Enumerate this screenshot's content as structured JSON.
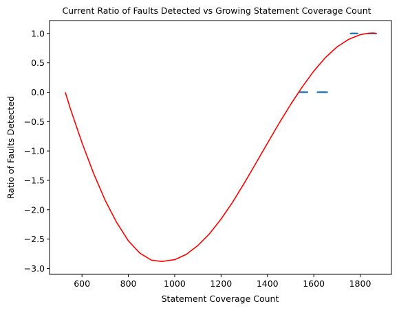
{
  "chart_data": {
    "type": "scatter",
    "title": "Current Ratio of Faults Detected vs Growing Statement Coverage Count",
    "xlabel": "Statement Coverage Count",
    "ylabel": "Ratio of Faults Detected",
    "xlim": [
      460,
      1935
    ],
    "ylim": [
      -3.1,
      1.22
    ],
    "xticks": [
      600,
      800,
      1000,
      1200,
      1400,
      1600,
      1800
    ],
    "yticks": [
      1.0,
      0.5,
      0.0,
      -0.5,
      -1.0,
      -1.5,
      -2.0,
      -2.5,
      -3.0
    ],
    "xtick_labels": [
      "600",
      "800",
      "1000",
      "1200",
      "1400",
      "1600",
      "1800"
    ],
    "ytick_labels": [
      "1.0",
      "0.5",
      "0.0",
      "−0.5",
      "−1.0",
      "−1.5",
      "−2.0",
      "−2.5",
      "−3.0"
    ],
    "grid": false,
    "legend": "none",
    "colors": {
      "points": "#1f77b4",
      "fit": "#ff0000"
    },
    "series": [
      {
        "kind": "points",
        "x": [
          1543,
          1549,
          1555,
          1561,
          1567,
          1622,
          1628,
          1634,
          1640,
          1646,
          1652,
          1765,
          1771,
          1777,
          1783,
          1841,
          1847,
          1853,
          1859
        ],
        "y": [
          0,
          0,
          0,
          0,
          0,
          0,
          0,
          0,
          0,
          0,
          0,
          1,
          1,
          1,
          1,
          1,
          1,
          1,
          1
        ]
      },
      {
        "kind": "fit-curve",
        "x": [
          528,
          550,
          600,
          650,
          700,
          750,
          800,
          850,
          900,
          945,
          1000,
          1050,
          1100,
          1150,
          1200,
          1250,
          1300,
          1350,
          1400,
          1450,
          1500,
          1550,
          1600,
          1650,
          1700,
          1750,
          1800,
          1830,
          1855,
          1872
        ],
        "y": [
          0.0,
          -0.28,
          -0.86,
          -1.38,
          -1.84,
          -2.22,
          -2.53,
          -2.74,
          -2.86,
          -2.88,
          -2.85,
          -2.76,
          -2.61,
          -2.41,
          -2.16,
          -1.87,
          -1.55,
          -1.21,
          -0.87,
          -0.53,
          -0.21,
          0.09,
          0.36,
          0.59,
          0.77,
          0.9,
          0.98,
          1.0,
          1.01,
          1.0
        ]
      }
    ]
  }
}
